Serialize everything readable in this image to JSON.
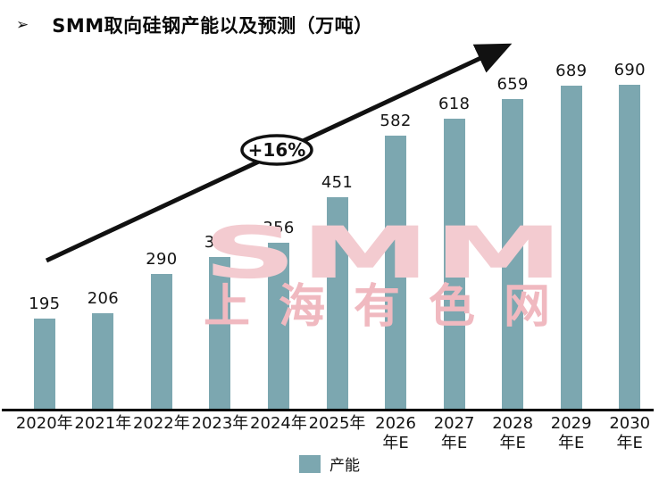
{
  "title": {
    "bullet": "➢",
    "text": "SMM取向硅钢产能以及预测（万吨）"
  },
  "chart_data": {
    "type": "bar",
    "title": "SMM取向硅钢产能以及预测（万吨）",
    "categories": [
      "2020年",
      "2021年",
      "2022年",
      "2023年",
      "2024年",
      "2025年",
      "2026年E",
      "2027年E",
      "2028年E",
      "2029年E",
      "2030年E"
    ],
    "values": [
      195,
      206,
      290,
      326,
      356,
      451,
      582,
      618,
      659,
      689,
      690
    ],
    "series": [
      {
        "name": "产能",
        "values": [
          195,
          206,
          290,
          326,
          356,
          451,
          582,
          618,
          659,
          689,
          690
        ]
      }
    ],
    "xlabel": "",
    "ylabel": "",
    "ylim": [
      0,
      760
    ],
    "grid": false,
    "bar_color": "#7CA7B0",
    "annotation": "+16%",
    "legend_position": "bottom"
  },
  "annotation": {
    "growth_label": "+16%"
  },
  "legend": {
    "label": "产能",
    "color": "#7CA7B0"
  },
  "watermark": {
    "line1": "SMM",
    "line2": "上海有色网",
    "color": "#F0B9C0"
  }
}
